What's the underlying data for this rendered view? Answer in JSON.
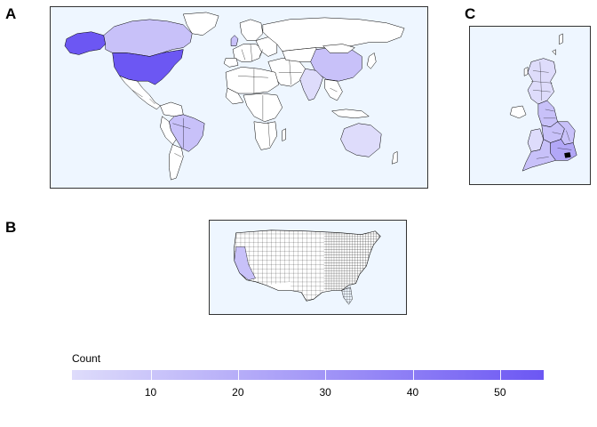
{
  "panels": {
    "a": {
      "label": "A"
    },
    "b": {
      "label": "B"
    },
    "c": {
      "label": "C"
    }
  },
  "legend": {
    "title": "Count",
    "min": 1,
    "max": 55,
    "ticks": [
      {
        "value": 10,
        "label": "10"
      },
      {
        "value": 20,
        "label": "20"
      },
      {
        "value": 30,
        "label": "30"
      },
      {
        "value": 40,
        "label": "40"
      },
      {
        "value": 50,
        "label": "50"
      }
    ],
    "color_low": "#dedcfb",
    "color_high": "#6c57f3"
  },
  "colors": {
    "ocean": "#eef6ff",
    "land_empty": "#ffffff",
    "border": "#000000"
  }
}
